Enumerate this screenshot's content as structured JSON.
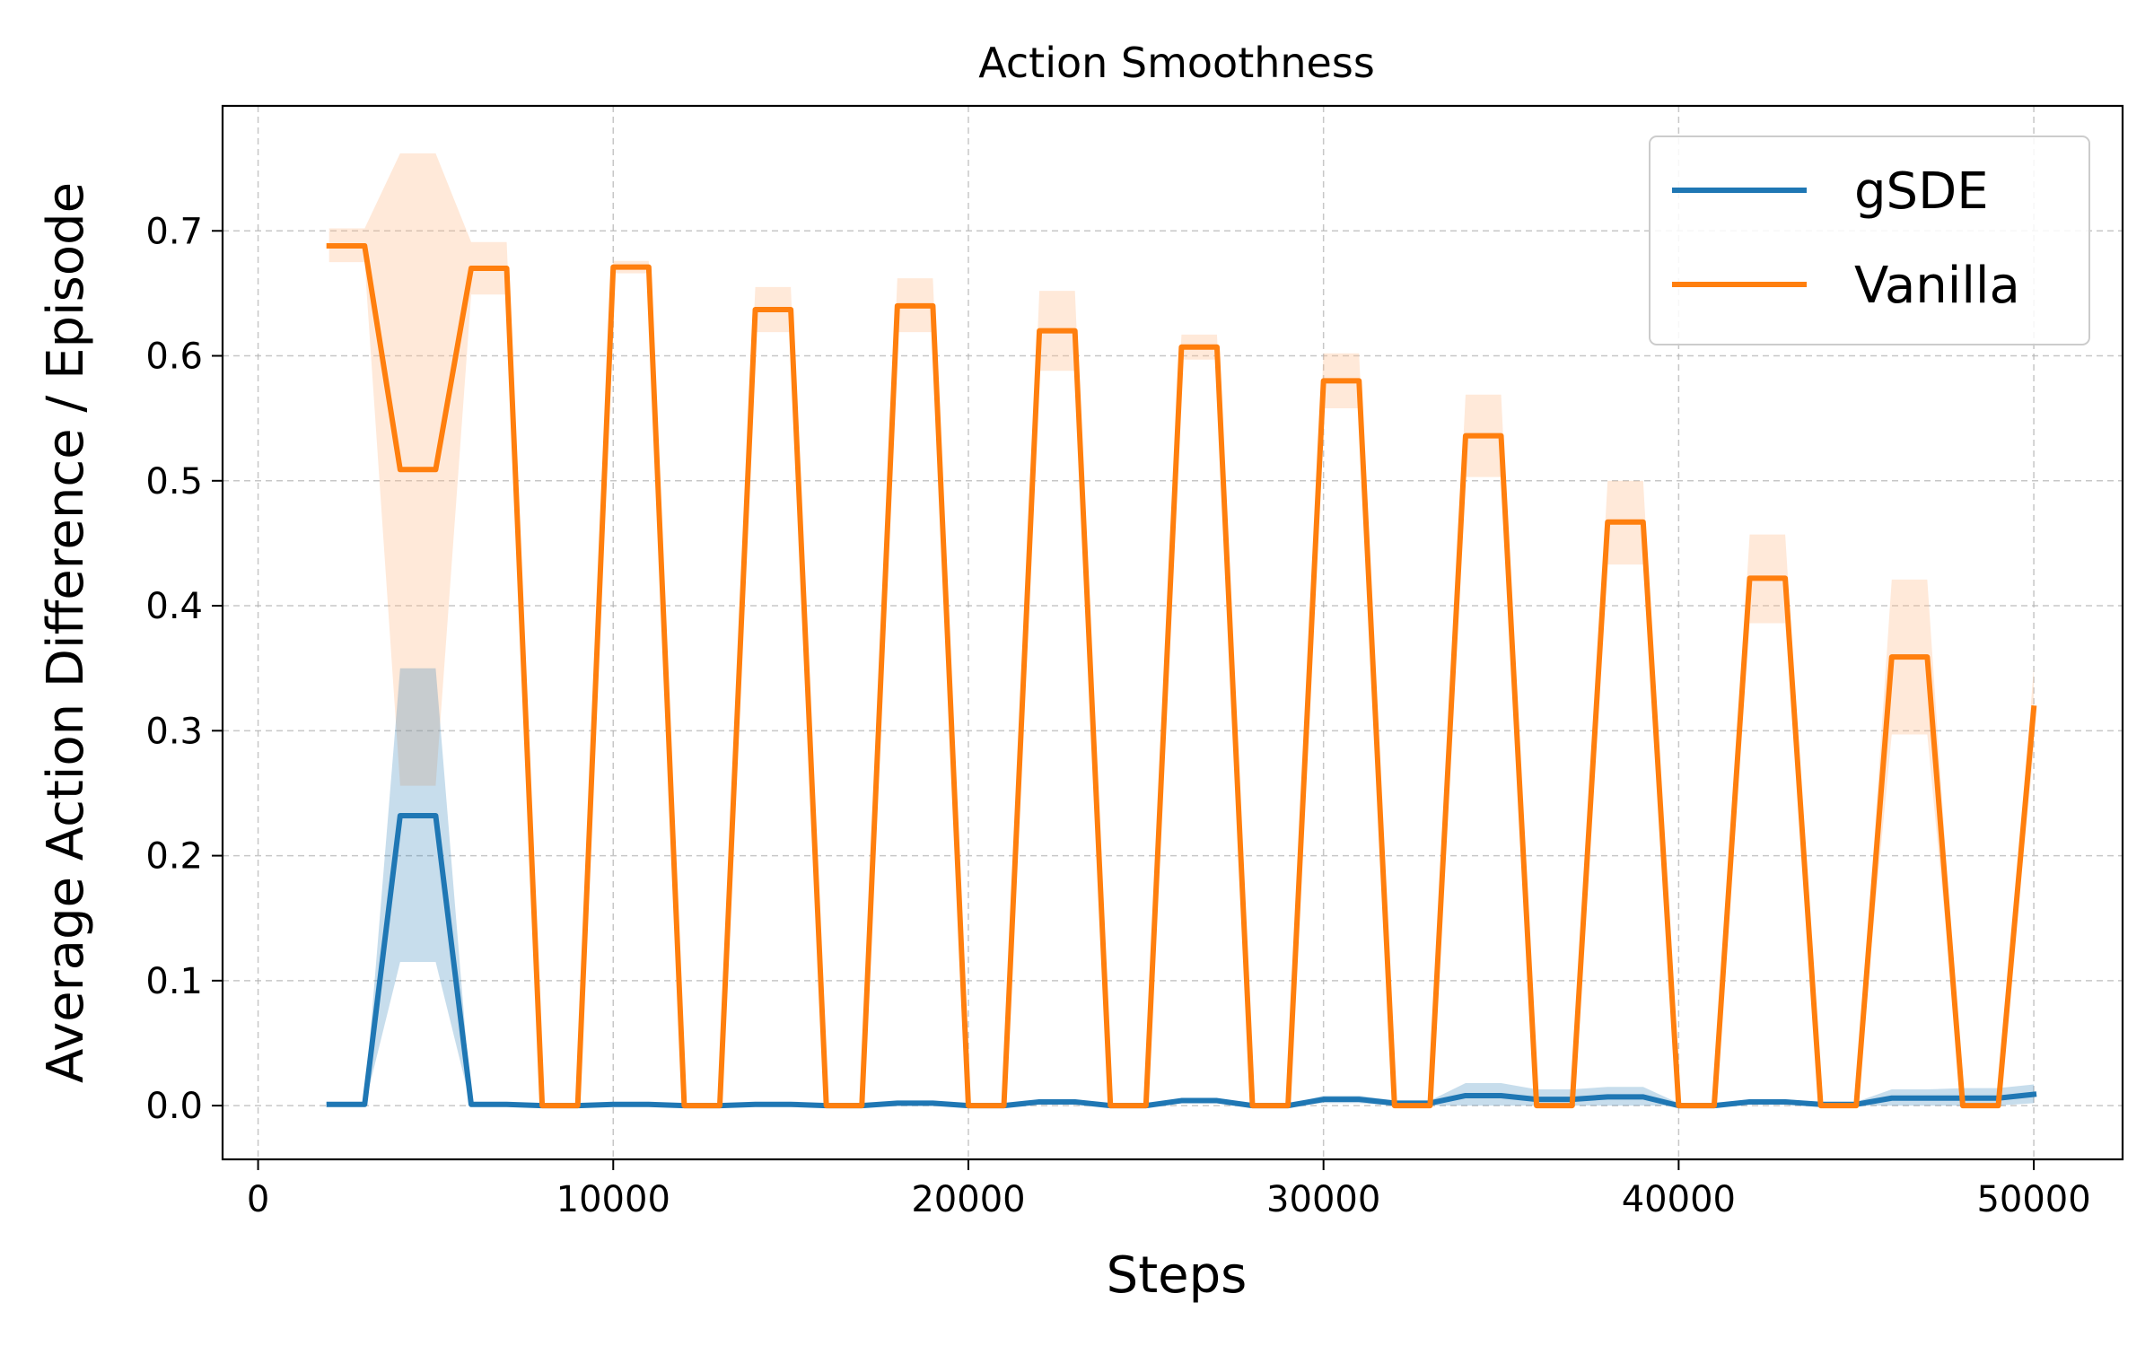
{
  "chart_data": {
    "type": "line",
    "title": "Action Smoothness",
    "xlabel": "Steps",
    "ylabel": "Average Action Difference / Episode",
    "xlim": [
      -1000,
      52500
    ],
    "ylim": [
      -0.043,
      0.8
    ],
    "xticks": [
      0,
      10000,
      20000,
      30000,
      40000,
      50000
    ],
    "xtick_labels": [
      "0",
      "10000",
      "20000",
      "30000",
      "40000",
      "50000"
    ],
    "yticks": [
      0.0,
      0.1,
      0.2,
      0.3,
      0.4,
      0.5,
      0.6,
      0.7
    ],
    "ytick_labels": [
      "0.0",
      "0.1",
      "0.2",
      "0.3",
      "0.4",
      "0.5",
      "0.6",
      "0.7"
    ],
    "grid": true,
    "legend_position": "top-right",
    "series": [
      {
        "name": "gSDE",
        "color": "#1f77b4",
        "band_color": "#1f77b4",
        "points": [
          [
            2000,
            0.001
          ],
          [
            3000,
            0.001
          ],
          [
            4000,
            0.232
          ],
          [
            5000,
            0.232
          ],
          [
            6000,
            0.001
          ],
          [
            7000,
            0.001
          ],
          [
            8000,
            0.0
          ],
          [
            9000,
            0.0
          ],
          [
            10000,
            0.001
          ],
          [
            11000,
            0.001
          ],
          [
            12000,
            0.0
          ],
          [
            13000,
            0.0
          ],
          [
            14000,
            0.001
          ],
          [
            15000,
            0.001
          ],
          [
            16000,
            0.0
          ],
          [
            17000,
            0.0
          ],
          [
            18000,
            0.002
          ],
          [
            19000,
            0.002
          ],
          [
            20000,
            0.0
          ],
          [
            21000,
            0.0
          ],
          [
            22000,
            0.003
          ],
          [
            23000,
            0.003
          ],
          [
            24000,
            0.0
          ],
          [
            25000,
            0.0
          ],
          [
            26000,
            0.004
          ],
          [
            27000,
            0.004
          ],
          [
            28000,
            0.0
          ],
          [
            29000,
            0.0
          ],
          [
            30000,
            0.005
          ],
          [
            31000,
            0.005
          ],
          [
            32000,
            0.002
          ],
          [
            33000,
            0.002
          ],
          [
            34000,
            0.008
          ],
          [
            35000,
            0.008
          ],
          [
            36000,
            0.005
          ],
          [
            37000,
            0.005
          ],
          [
            38000,
            0.007
          ],
          [
            39000,
            0.007
          ],
          [
            40000,
            0.0
          ],
          [
            41000,
            0.0
          ],
          [
            42000,
            0.003
          ],
          [
            43000,
            0.003
          ],
          [
            44000,
            0.001
          ],
          [
            45000,
            0.001
          ],
          [
            46000,
            0.006
          ],
          [
            47000,
            0.006
          ],
          [
            48000,
            0.006
          ],
          [
            49000,
            0.006
          ],
          [
            50000,
            0.009
          ]
        ],
        "band": [
          [
            2000,
            0.0,
            0.002
          ],
          [
            3000,
            0.0,
            0.002
          ],
          [
            4000,
            0.115,
            0.35
          ],
          [
            5000,
            0.115,
            0.35
          ],
          [
            6000,
            0.0,
            0.002
          ],
          [
            7000,
            0.0,
            0.002
          ],
          [
            8000,
            0.0,
            0.001
          ],
          [
            9000,
            0.0,
            0.001
          ],
          [
            10000,
            0.0,
            0.002
          ],
          [
            11000,
            0.0,
            0.002
          ],
          [
            12000,
            0.0,
            0.001
          ],
          [
            13000,
            0.0,
            0.001
          ],
          [
            14000,
            0.0,
            0.002
          ],
          [
            15000,
            0.0,
            0.002
          ],
          [
            16000,
            0.0,
            0.001
          ],
          [
            17000,
            0.0,
            0.001
          ],
          [
            18000,
            0.0,
            0.004
          ],
          [
            19000,
            0.0,
            0.004
          ],
          [
            20000,
            0.0,
            0.001
          ],
          [
            21000,
            0.0,
            0.001
          ],
          [
            22000,
            0.001,
            0.005
          ],
          [
            23000,
            0.001,
            0.005
          ],
          [
            24000,
            0.0,
            0.001
          ],
          [
            25000,
            0.0,
            0.001
          ],
          [
            26000,
            0.002,
            0.006
          ],
          [
            27000,
            0.002,
            0.006
          ],
          [
            28000,
            0.0,
            0.001
          ],
          [
            29000,
            0.0,
            0.001
          ],
          [
            30000,
            0.002,
            0.008
          ],
          [
            31000,
            0.002,
            0.008
          ],
          [
            32000,
            0.0,
            0.004
          ],
          [
            33000,
            0.0,
            0.004
          ],
          [
            34000,
            0.0,
            0.018
          ],
          [
            35000,
            0.0,
            0.018
          ],
          [
            36000,
            0.0,
            0.013
          ],
          [
            37000,
            0.0,
            0.013
          ],
          [
            38000,
            0.0,
            0.015
          ],
          [
            39000,
            0.0,
            0.015
          ],
          [
            40000,
            0.0,
            0.002
          ],
          [
            41000,
            0.0,
            0.002
          ],
          [
            42000,
            0.001,
            0.005
          ],
          [
            43000,
            0.001,
            0.005
          ],
          [
            44000,
            0.0,
            0.003
          ],
          [
            45000,
            0.0,
            0.003
          ],
          [
            46000,
            0.0,
            0.013
          ],
          [
            47000,
            0.0,
            0.013
          ],
          [
            48000,
            0.0,
            0.014
          ],
          [
            49000,
            0.0,
            0.014
          ],
          [
            50000,
            0.002,
            0.017
          ]
        ]
      },
      {
        "name": "Vanilla",
        "color": "#ff7f0e",
        "band_color": "#ffbb88",
        "points": [
          [
            2000,
            0.688
          ],
          [
            3000,
            0.688
          ],
          [
            4000,
            0.509
          ],
          [
            5000,
            0.509
          ],
          [
            6000,
            0.67
          ],
          [
            7000,
            0.67
          ],
          [
            8000,
            0.0
          ],
          [
            9000,
            0.0
          ],
          [
            10000,
            0.671
          ],
          [
            11000,
            0.671
          ],
          [
            12000,
            0.0
          ],
          [
            13000,
            0.0
          ],
          [
            14000,
            0.637
          ],
          [
            15000,
            0.637
          ],
          [
            16000,
            0.0
          ],
          [
            17000,
            0.0
          ],
          [
            18000,
            0.64
          ],
          [
            19000,
            0.64
          ],
          [
            20000,
            0.0
          ],
          [
            21000,
            0.0
          ],
          [
            22000,
            0.62
          ],
          [
            23000,
            0.62
          ],
          [
            24000,
            0.0
          ],
          [
            25000,
            0.0
          ],
          [
            26000,
            0.607
          ],
          [
            27000,
            0.607
          ],
          [
            28000,
            0.0
          ],
          [
            29000,
            0.0
          ],
          [
            30000,
            0.58
          ],
          [
            31000,
            0.58
          ],
          [
            32000,
            0.0
          ],
          [
            33000,
            0.0
          ],
          [
            34000,
            0.536
          ],
          [
            35000,
            0.536
          ],
          [
            36000,
            0.0
          ],
          [
            37000,
            0.0
          ],
          [
            38000,
            0.467
          ],
          [
            39000,
            0.467
          ],
          [
            40000,
            0.0
          ],
          [
            41000,
            0.0
          ],
          [
            42000,
            0.422
          ],
          [
            43000,
            0.422
          ],
          [
            44000,
            0.0
          ],
          [
            45000,
            0.0
          ],
          [
            46000,
            0.359
          ],
          [
            47000,
            0.359
          ],
          [
            48000,
            0.0
          ],
          [
            49000,
            0.0
          ],
          [
            50000,
            0.318
          ]
        ],
        "band": [
          [
            2000,
            0.675,
            0.702
          ],
          [
            3000,
            0.675,
            0.702
          ],
          [
            4000,
            0.256,
            0.762
          ],
          [
            5000,
            0.256,
            0.762
          ],
          [
            6000,
            0.649,
            0.691
          ],
          [
            7000,
            0.649,
            0.691
          ],
          [
            8000,
            0.0,
            0.0
          ],
          [
            9000,
            0.0,
            0.0
          ],
          [
            10000,
            0.666,
            0.676
          ],
          [
            11000,
            0.666,
            0.676
          ],
          [
            12000,
            0.0,
            0.0
          ],
          [
            13000,
            0.0,
            0.0
          ],
          [
            14000,
            0.619,
            0.655
          ],
          [
            15000,
            0.619,
            0.655
          ],
          [
            16000,
            0.0,
            0.0
          ],
          [
            17000,
            0.0,
            0.0
          ],
          [
            18000,
            0.619,
            0.662
          ],
          [
            19000,
            0.619,
            0.662
          ],
          [
            20000,
            0.0,
            0.0
          ],
          [
            21000,
            0.0,
            0.0
          ],
          [
            22000,
            0.588,
            0.652
          ],
          [
            23000,
            0.588,
            0.652
          ],
          [
            24000,
            0.0,
            0.0
          ],
          [
            25000,
            0.0,
            0.0
          ],
          [
            26000,
            0.597,
            0.617
          ],
          [
            27000,
            0.597,
            0.617
          ],
          [
            28000,
            0.0,
            0.0
          ],
          [
            29000,
            0.0,
            0.0
          ],
          [
            30000,
            0.558,
            0.602
          ],
          [
            31000,
            0.558,
            0.602
          ],
          [
            32000,
            0.0,
            0.0
          ],
          [
            33000,
            0.0,
            0.0
          ],
          [
            34000,
            0.503,
            0.569
          ],
          [
            35000,
            0.503,
            0.569
          ],
          [
            36000,
            0.0,
            0.0
          ],
          [
            37000,
            0.0,
            0.0
          ],
          [
            38000,
            0.433,
            0.5
          ],
          [
            39000,
            0.433,
            0.5
          ],
          [
            40000,
            0.0,
            0.0
          ],
          [
            41000,
            0.0,
            0.0
          ],
          [
            42000,
            0.386,
            0.457
          ],
          [
            43000,
            0.386,
            0.457
          ],
          [
            44000,
            0.0,
            0.0
          ],
          [
            45000,
            0.0,
            0.0
          ],
          [
            46000,
            0.297,
            0.421
          ],
          [
            47000,
            0.297,
            0.421
          ],
          [
            48000,
            0.0,
            0.0
          ],
          [
            49000,
            0.0,
            0.0
          ],
          [
            50000,
            0.284,
            0.35
          ]
        ]
      }
    ]
  }
}
